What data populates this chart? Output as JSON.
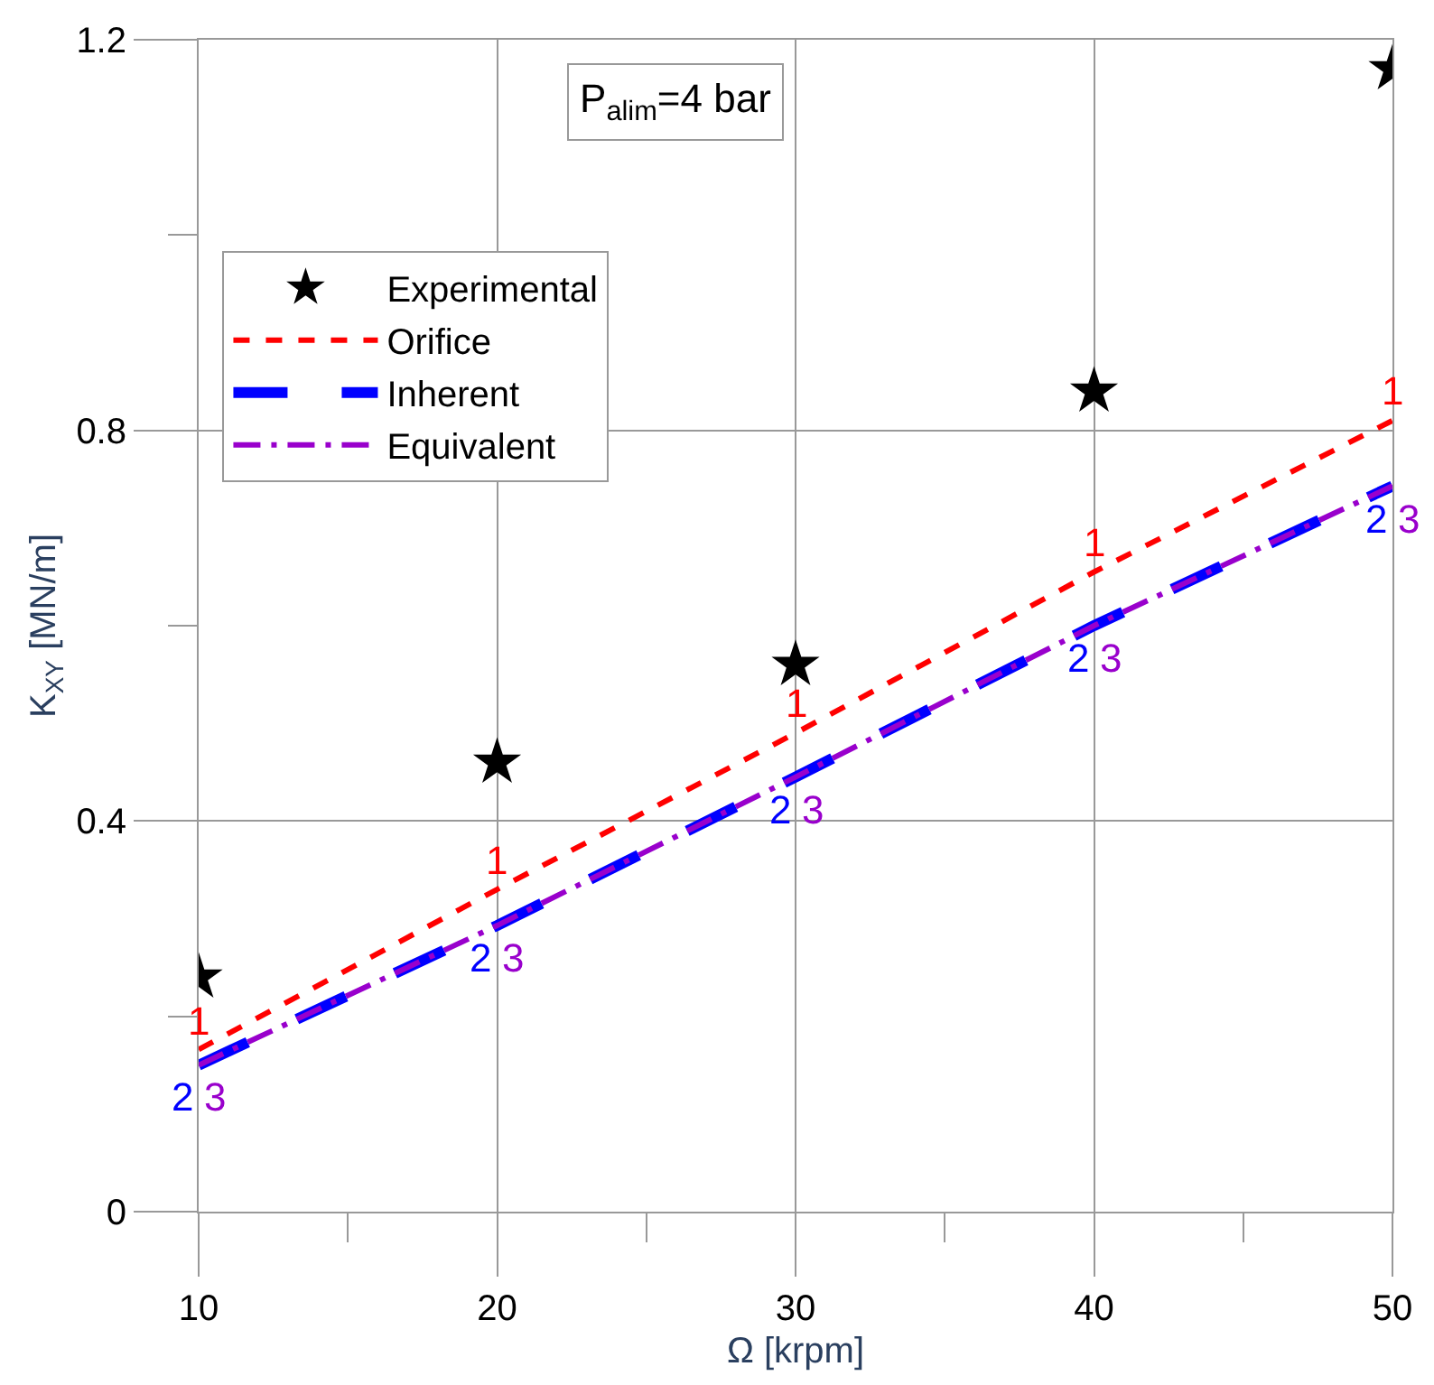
{
  "chart_data": {
    "type": "line",
    "xlabel": "Ω [krpm]",
    "ylabel": "K$_{XY}$ [MN/m]",
    "annotations": [
      "P$_{alim}$=4 bar",
      {
        "text": "1",
        "x": 10,
        "y": 0.166
      },
      {
        "text": "1",
        "x": 20,
        "y": 0.33
      },
      {
        "text": "1",
        "x": 30,
        "y": 0.49
      },
      {
        "text": "1",
        "x": 40,
        "y": 0.655
      },
      {
        "text": "1",
        "x": 50,
        "y": 0.81
      },
      {
        "text": "2",
        "x": 10,
        "y": 0.15
      },
      {
        "text": "2",
        "x": 20,
        "y": 0.293
      },
      {
        "text": "2",
        "x": 30,
        "y": 0.445
      },
      {
        "text": "2",
        "x": 40,
        "y": 0.6
      },
      {
        "text": "2",
        "x": 50,
        "y": 0.743
      },
      {
        "text": "3",
        "x": 10,
        "y": 0.15
      },
      {
        "text": "3",
        "x": 20,
        "y": 0.293
      },
      {
        "text": "3",
        "x": 30,
        "y": 0.445
      },
      {
        "text": "3",
        "x": 40,
        "y": 0.6
      },
      {
        "text": "3",
        "x": 50,
        "y": 0.743
      }
    ],
    "x": [
      10,
      20,
      30,
      40,
      50
    ],
    "series": [
      {
        "name": "Experimental",
        "type": "scatter",
        "marker": "star",
        "color": "#000000",
        "values": [
          0.24,
          0.46,
          0.56,
          0.84,
          1.17
        ]
      },
      {
        "name": "Orifice",
        "color": "#ff0000",
        "line_style": "dashed",
        "values": [
          0.166,
          0.33,
          0.49,
          0.655,
          0.81
        ]
      },
      {
        "name": "Inherent",
        "color": "#0000ff",
        "line_style": "dashed",
        "values": [
          0.15,
          0.293,
          0.445,
          0.6,
          0.743
        ]
      },
      {
        "name": "Equivalent",
        "color": "#9900cc",
        "line_style": "dashed",
        "values": [
          0.15,
          0.293,
          0.445,
          0.6,
          0.743
        ]
      }
    ],
    "xlim": [
      10,
      50
    ],
    "xticks": [
      10,
      20,
      30,
      40,
      50
    ],
    "ylim": [
      0,
      1.2
    ],
    "yticks": [
      0,
      0.4,
      0.8,
      1.2
    ],
    "grid": true,
    "legend": "top left"
  }
}
